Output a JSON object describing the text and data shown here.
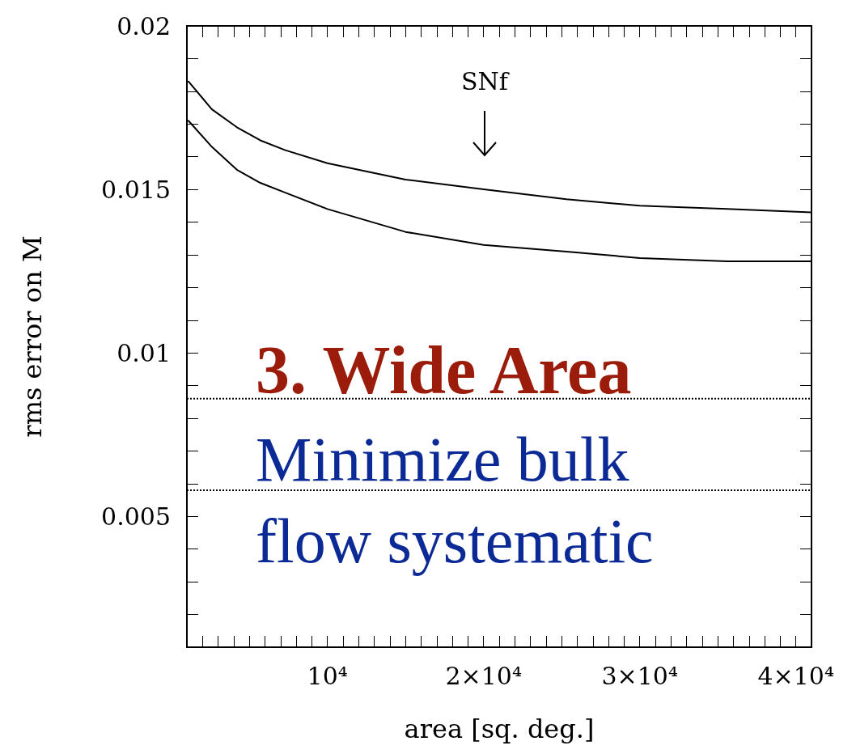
{
  "chart_data": {
    "type": "line",
    "xlabel": "area [sq. deg.]",
    "ylabel": "rms error on M",
    "xlim": [
      1000,
      41000
    ],
    "ylim": [
      0.001,
      0.02
    ],
    "xticks": [
      {
        "value": 1000,
        "label": null
      },
      {
        "value": 2000,
        "label": null
      },
      {
        "value": 3000,
        "label": null
      },
      {
        "value": 4000,
        "label": null
      },
      {
        "value": 5000,
        "label": null
      },
      {
        "value": 6000,
        "label": null
      },
      {
        "value": 7000,
        "label": null
      },
      {
        "value": 8000,
        "label": null
      },
      {
        "value": 9000,
        "label": null
      },
      {
        "value": 10000,
        "label": "10⁴"
      },
      {
        "value": 11000,
        "label": null
      },
      {
        "value": 12000,
        "label": null
      },
      {
        "value": 13000,
        "label": null
      },
      {
        "value": 14000,
        "label": null
      },
      {
        "value": 15000,
        "label": null
      },
      {
        "value": 16000,
        "label": null
      },
      {
        "value": 17000,
        "label": null
      },
      {
        "value": 18000,
        "label": null
      },
      {
        "value": 19000,
        "label": null
      },
      {
        "value": 20000,
        "label": "2×10⁴"
      },
      {
        "value": 21000,
        "label": null
      },
      {
        "value": 22000,
        "label": null
      },
      {
        "value": 23000,
        "label": null
      },
      {
        "value": 24000,
        "label": null
      },
      {
        "value": 25000,
        "label": null
      },
      {
        "value": 26000,
        "label": null
      },
      {
        "value": 27000,
        "label": null
      },
      {
        "value": 28000,
        "label": null
      },
      {
        "value": 29000,
        "label": null
      },
      {
        "value": 30000,
        "label": "3×10⁴"
      },
      {
        "value": 31000,
        "label": null
      },
      {
        "value": 32000,
        "label": null
      },
      {
        "value": 33000,
        "label": null
      },
      {
        "value": 34000,
        "label": null
      },
      {
        "value": 35000,
        "label": null
      },
      {
        "value": 36000,
        "label": null
      },
      {
        "value": 37000,
        "label": null
      },
      {
        "value": 38000,
        "label": null
      },
      {
        "value": 39000,
        "label": null
      },
      {
        "value": 40000,
        "label": "4×10⁴"
      },
      {
        "value": 41000,
        "label": null
      }
    ],
    "yticks": [
      {
        "value": 0.001,
        "label": null
      },
      {
        "value": 0.002,
        "label": null
      },
      {
        "value": 0.003,
        "label": null
      },
      {
        "value": 0.004,
        "label": null
      },
      0.005,
      {
        "value": 0.006,
        "label": null
      },
      {
        "value": 0.007,
        "label": null
      },
      {
        "value": 0.008,
        "label": null
      },
      {
        "value": 0.009,
        "label": null
      },
      0.01,
      {
        "value": 0.011,
        "label": null
      },
      {
        "value": 0.012,
        "label": null
      },
      {
        "value": 0.013,
        "label": null
      },
      {
        "value": 0.014,
        "label": null
      },
      0.015,
      {
        "value": 0.016,
        "label": null
      },
      {
        "value": 0.017,
        "label": null
      },
      {
        "value": 0.018,
        "label": null
      },
      {
        "value": 0.019,
        "label": null
      },
      0.02
    ],
    "grid": false,
    "marker": "none",
    "line_style": "solid",
    "series": [
      {
        "color": "#000000",
        "x": [
          1100,
          2600,
          4200,
          5700,
          7300,
          10000,
          15000,
          20000,
          25300,
          30000,
          35600,
          41000
        ],
        "values": [
          0.0183,
          0.01745,
          0.0169,
          0.0165,
          0.0162,
          0.0158,
          0.0153,
          0.015,
          0.0147,
          0.0145,
          0.0144,
          0.0143
        ]
      },
      {
        "color": "#000000",
        "x": [
          1100,
          2600,
          4200,
          5700,
          7300,
          10000,
          15000,
          20000,
          25300,
          30000,
          35600,
          41000
        ],
        "values": [
          0.0171,
          0.0163,
          0.0156,
          0.0152,
          0.0149,
          0.0144,
          0.0137,
          0.0133,
          0.0131,
          0.0129,
          0.0128,
          0.0128
        ]
      }
    ],
    "ref_lines": [
      {
        "axis": "y",
        "value": 0.0086,
        "color": "#000000",
        "line_style": "dotted"
      },
      {
        "axis": "y",
        "value": 0.0058,
        "color": "#000000",
        "line_style": "dotted"
      }
    ],
    "annotations": [
      "SNf",
      "3. Wide Area",
      "Minimize bulk flow systematic"
    ]
  }
}
